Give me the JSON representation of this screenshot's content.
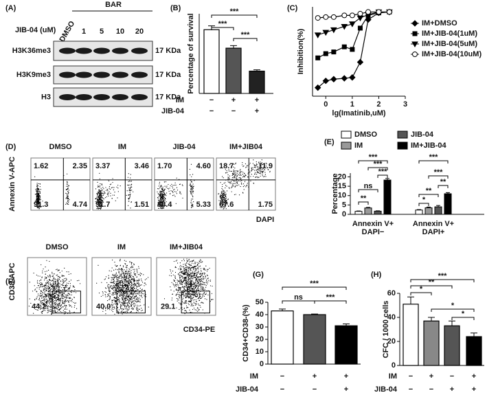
{
  "panel_labels": [
    "(A)",
    "(B)",
    "(C)",
    "(D)",
    "(E)",
    "(F)",
    "(G)",
    "(H)"
  ],
  "western_blot": {
    "group": "BAR",
    "dose_label": "JIB-04 (uM)",
    "lanes": [
      "DMSO",
      "1",
      "5",
      "10",
      "20"
    ],
    "rows": [
      {
        "name": "H3K36me3",
        "size": "17 KDa"
      },
      {
        "name": "H3K9me3",
        "size": "17 KDa"
      },
      {
        "name": "H3",
        "size": "17 KDa"
      }
    ]
  },
  "flow_d": {
    "y_label": "Annexin V-APC",
    "x_label": "DAPI",
    "plots": [
      {
        "title": "DMSO",
        "quadrants": [
          "1.62",
          "2.35",
          "91.3",
          "4.74"
        ]
      },
      {
        "title": "IM",
        "quadrants": [
          "3.37",
          "3.46",
          "91.7",
          "1.51"
        ]
      },
      {
        "title": "JIB-04",
        "quadrants": [
          "1.70",
          "4.60",
          "88.4",
          "5.33"
        ]
      },
      {
        "title": "IM+JIB04",
        "quadrants": [
          "18.7",
          "11.9",
          "67.6",
          "1.75"
        ]
      }
    ]
  },
  "flow_f": {
    "y_label": "CD38-APC",
    "x_label": "CD34-PE",
    "plots": [
      {
        "title": "DMSO",
        "gate": "44.2"
      },
      {
        "title": "IM",
        "gate": "40.0"
      },
      {
        "title": "IM+JIB04",
        "gate": "29.1"
      }
    ]
  },
  "chart_data": [
    {
      "type": "bar",
      "y_label": "Percentage of survival",
      "values": [
        100,
        71,
        35
      ],
      "errors": [
        6,
        4,
        2
      ],
      "colors": [
        "#ffffff",
        "#555555",
        "#222222"
      ],
      "ylim": [
        0,
        125
      ],
      "annotations": [
        "***",
        "***",
        "***"
      ],
      "treatments": [
        {
          "name": "IM",
          "signs": [
            "−",
            "+",
            "+"
          ]
        },
        {
          "name": "JIB-04",
          "signs": [
            "−",
            "−",
            "+"
          ]
        }
      ]
    },
    {
      "type": "line",
      "x_label": "lg(Imatinib,uM)",
      "y_label": "Inhibition(%)",
      "x": [
        -0.3,
        0,
        0.3,
        0.7,
        1,
        1.3,
        1.6,
        2,
        2.4
      ],
      "xlim": [
        -0.5,
        3
      ],
      "xticks": [
        0,
        1,
        2,
        3
      ],
      "ylim": [
        0,
        105
      ],
      "legend": "right",
      "series": [
        {
          "name": "IM+DMSO",
          "color": "#000000",
          "marker": "diamond",
          "values": [
            10,
            18,
            20,
            21,
            22,
            40,
            90,
            98,
            99
          ]
        },
        {
          "name": "IM+JIB-04(1uM)",
          "color": "#000000",
          "marker": "square",
          "values": [
            45,
            50,
            52,
            58,
            55,
            80,
            95,
            98,
            99
          ]
        },
        {
          "name": "IM+JIB-04(5uM)",
          "color": "#000000",
          "marker": "triangle-down",
          "values": [
            72,
            75,
            78,
            82,
            85,
            92,
            96,
            99,
            99
          ]
        },
        {
          "name": "IM+JIB-04(10uM)",
          "color": "#000000",
          "marker": "circle-open",
          "values": [
            92,
            93,
            93,
            95,
            95,
            97,
            99,
            99,
            99
          ]
        }
      ]
    },
    {
      "type": "grouped-bar",
      "y_label": "Percentage",
      "categories": [
        [
          "Annexin V+",
          "DAPI−"
        ],
        [
          "Annexin V+",
          "DAPI+"
        ]
      ],
      "ylim": [
        0,
        22
      ],
      "yticks": [
        0,
        5,
        10,
        15,
        20
      ],
      "series": [
        {
          "name": "DMSO",
          "color": "#ffffff",
          "values": [
            1.6,
            2.3
          ],
          "errors": [
            0.2,
            0.2
          ]
        },
        {
          "name": "IM",
          "color": "#999999",
          "values": [
            3.4,
            3.5
          ],
          "errors": [
            0.3,
            0.4
          ]
        },
        {
          "name": "JIB-04",
          "color": "#555555",
          "values": [
            1.7,
            4.0
          ],
          "errors": [
            0.2,
            0.7
          ]
        },
        {
          "name": "IM+JIB-04",
          "color": "#000000",
          "values": [
            18.3,
            11.0
          ],
          "errors": [
            0.8,
            0.6
          ]
        }
      ],
      "annotations": [
        [
          "**",
          "ns",
          "***",
          "***",
          "***"
        ],
        [
          "*",
          "**",
          "**",
          "***",
          "***"
        ]
      ]
    },
    {
      "type": "bar",
      "y_label": "CD34+CD38-(%)",
      "values": [
        43,
        40,
        31
      ],
      "errors": [
        1.5,
        0.5,
        1.5
      ],
      "colors": [
        "#ffffff",
        "#555555",
        "#000000"
      ],
      "ylim": [
        0,
        50
      ],
      "yticks": [
        0,
        10,
        20,
        30,
        40,
        50
      ],
      "annotations": [
        "***",
        "ns",
        "***"
      ],
      "treatments": [
        {
          "name": "IM",
          "signs": [
            "−",
            "+",
            "+"
          ]
        },
        {
          "name": "JIB-04",
          "signs": [
            "−",
            "−",
            "+"
          ]
        }
      ]
    },
    {
      "type": "bar",
      "y_label": "CFC / 1000 cells",
      "values": [
        51,
        37,
        33,
        24
      ],
      "errors": [
        6,
        3,
        4,
        3
      ],
      "colors": [
        "#ffffff",
        "#888888",
        "#555555",
        "#000000"
      ],
      "ylim": [
        0,
        60
      ],
      "yticks": [
        0,
        20,
        40,
        60
      ],
      "annotations": [
        "***",
        "**",
        "*",
        "*",
        "*"
      ],
      "treatments": [
        {
          "name": "IM",
          "signs": [
            "−",
            "+",
            "−",
            "+"
          ]
        },
        {
          "name": "JIB-04",
          "signs": [
            "−",
            "−",
            "+",
            "+"
          ]
        }
      ]
    }
  ]
}
